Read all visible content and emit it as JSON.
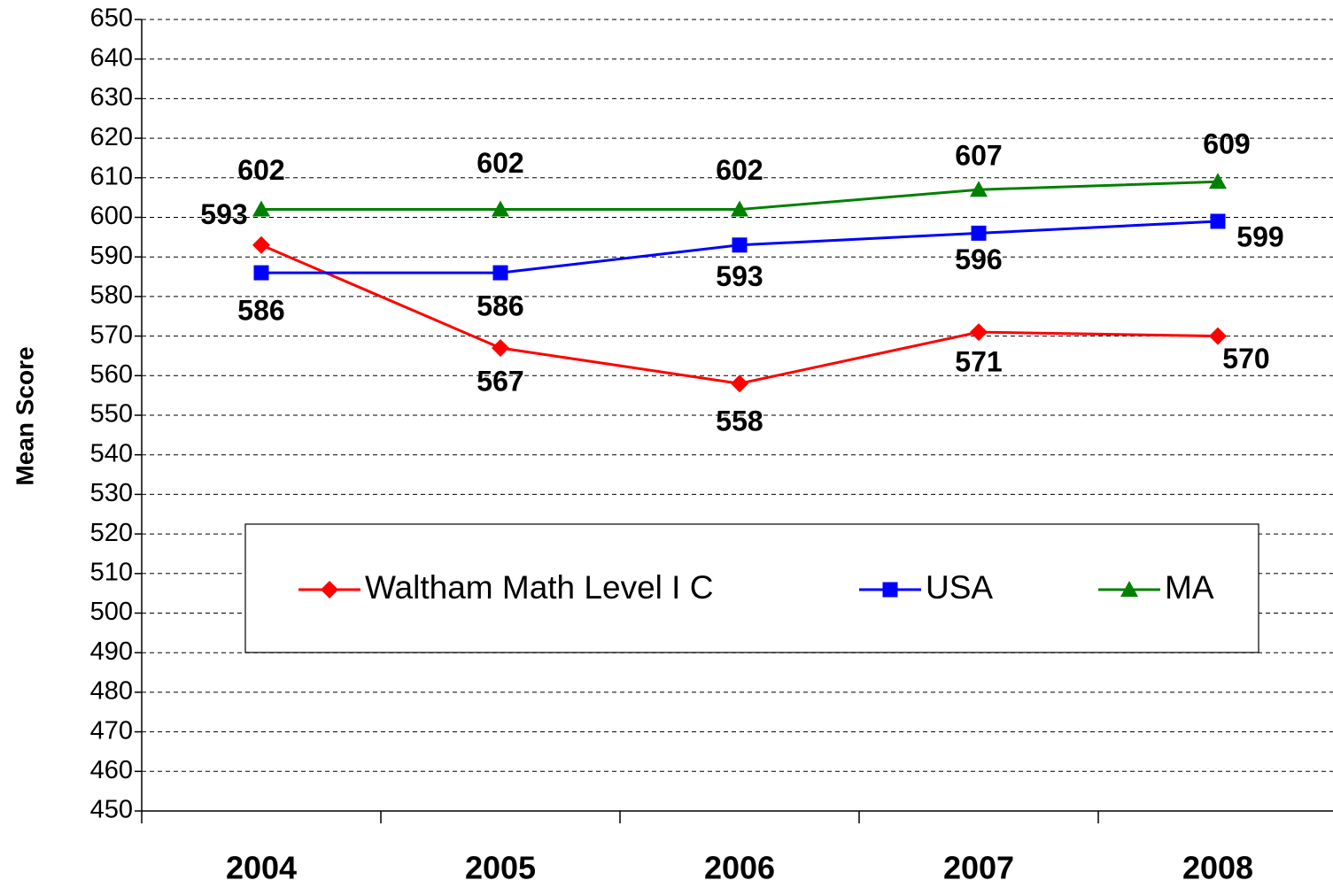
{
  "chart_data": {
    "type": "line",
    "y_label": "Mean Score",
    "categories": [
      "2004",
      "2005",
      "2006",
      "2007",
      "2008"
    ],
    "series": [
      {
        "name": "Waltham Math Level I C",
        "color": "#ff0000",
        "marker": "diamond",
        "values": [
          593,
          567,
          558,
          571,
          570
        ]
      },
      {
        "name": "USA",
        "color": "#0000ff",
        "marker": "square",
        "values": [
          586,
          586,
          593,
          596,
          599
        ]
      },
      {
        "name": "MA",
        "color": "#008000",
        "marker": "triangle",
        "values": [
          602,
          602,
          602,
          607,
          609
        ]
      }
    ],
    "ylim": [
      450,
      650
    ],
    "yticks": [
      450,
      460,
      470,
      480,
      490,
      500,
      510,
      520,
      530,
      540,
      550,
      560,
      570,
      580,
      590,
      600,
      610,
      620,
      630,
      640,
      650
    ],
    "grid": true,
    "legend": "lower center",
    "data_labels": true
  }
}
